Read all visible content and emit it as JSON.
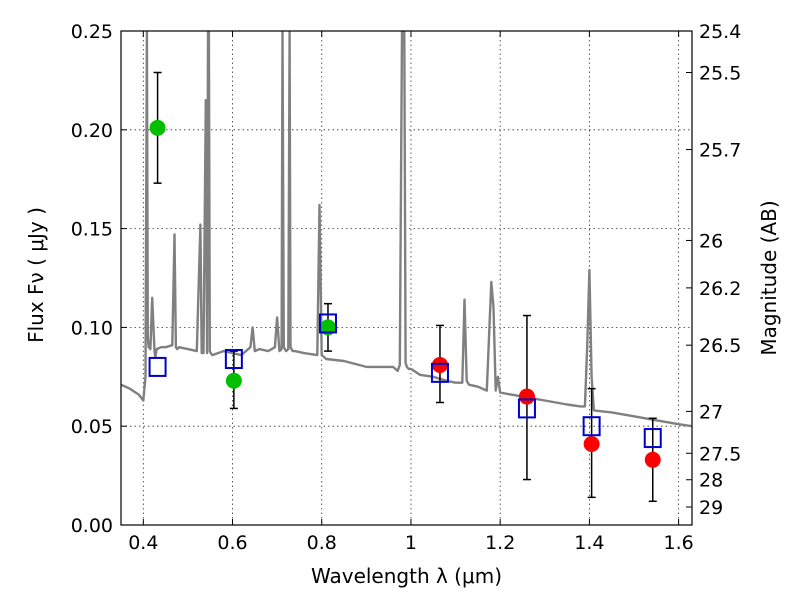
{
  "chart_data": {
    "type": "scatter",
    "title": "",
    "xlabel": "Wavelength  λ (μm)",
    "ylabel": "Flux  Fν  ( μJy )",
    "y2label": "Magnitude (AB)",
    "xlim": [
      0.35,
      1.63
    ],
    "ylim": [
      0,
      0.25
    ],
    "grid": true,
    "x_ticks": [
      0.4,
      0.6,
      0.8,
      1.0,
      1.2,
      1.4,
      1.6
    ],
    "x_tick_labels": [
      "0.4",
      "0.6",
      "0.8",
      "1",
      "1.2",
      "1.4",
      "1.6"
    ],
    "y_ticks": [
      0,
      0.05,
      0.1,
      0.15,
      0.2,
      0.25
    ],
    "y_tick_labels": [
      "0.00",
      "0.05",
      "0.10",
      "0.15",
      "0.20",
      "0.25"
    ],
    "y2_ticks": [
      {
        "label": "25.4",
        "flux": 0.25
      },
      {
        "label": "25.5",
        "flux": 0.229
      },
      {
        "label": "25.7",
        "flux": 0.19
      },
      {
        "label": "26",
        "flux": 0.144
      },
      {
        "label": "26.2",
        "flux": 0.12
      },
      {
        "label": "26.5",
        "flux": 0.091
      },
      {
        "label": "27",
        "flux": 0.0575
      },
      {
        "label": "27.5",
        "flux": 0.0363
      },
      {
        "label": "28",
        "flux": 0.0229
      },
      {
        "label": "29",
        "flux": 0.0091
      }
    ],
    "series": [
      {
        "kind": "line",
        "color": "#808080",
        "x": [
          0.35,
          0.37,
          0.39,
          0.4,
          0.405,
          0.408,
          0.41,
          0.412,
          0.416,
          0.42,
          0.425,
          0.427,
          0.43,
          0.44,
          0.45,
          0.465,
          0.47,
          0.473,
          0.476,
          0.48,
          0.5,
          0.52,
          0.528,
          0.531,
          0.535,
          0.54,
          0.543,
          0.545,
          0.547,
          0.549,
          0.551,
          0.555,
          0.58,
          0.6,
          0.62,
          0.64,
          0.645,
          0.65,
          0.66,
          0.68,
          0.695,
          0.7,
          0.705,
          0.71,
          0.712,
          0.715,
          0.72,
          0.725,
          0.728,
          0.73,
          0.735,
          0.74,
          0.76,
          0.79,
          0.795,
          0.8,
          0.805,
          0.81,
          0.85,
          0.9,
          0.93,
          0.96,
          0.97,
          0.975,
          0.98,
          0.985,
          0.988,
          0.991,
          0.995,
          1.0,
          1.02,
          1.05,
          1.08,
          1.1,
          1.115,
          1.12,
          1.125,
          1.13,
          1.15,
          1.17,
          1.18,
          1.185,
          1.19,
          1.195,
          1.2,
          1.25,
          1.3,
          1.35,
          1.38,
          1.39,
          1.395,
          1.4,
          1.405,
          1.41,
          1.45,
          1.5,
          1.55,
          1.6,
          1.63
        ],
        "y": [
          0.071,
          0.069,
          0.066,
          0.063,
          0.075,
          0.25,
          0.095,
          0.09,
          0.089,
          0.115,
          0.088,
          0.085,
          0.089,
          0.09,
          0.09,
          0.091,
          0.147,
          0.09,
          0.089,
          0.09,
          0.089,
          0.088,
          0.152,
          0.087,
          0.087,
          0.215,
          0.087,
          0.25,
          0.25,
          0.088,
          0.087,
          0.086,
          0.088,
          0.087,
          0.086,
          0.09,
          0.1,
          0.088,
          0.089,
          0.088,
          0.09,
          0.105,
          0.088,
          0.089,
          0.25,
          0.09,
          0.088,
          0.089,
          0.25,
          0.09,
          0.088,
          0.088,
          0.087,
          0.086,
          0.162,
          0.086,
          0.085,
          0.084,
          0.083,
          0.08,
          0.08,
          0.08,
          0.078,
          0.081,
          0.25,
          0.25,
          0.082,
          0.08,
          0.079,
          0.079,
          0.076,
          0.075,
          0.073,
          0.072,
          0.072,
          0.114,
          0.073,
          0.071,
          0.07,
          0.068,
          0.123,
          0.11,
          0.068,
          0.075,
          0.067,
          0.065,
          0.063,
          0.061,
          0.06,
          0.06,
          0.09,
          0.129,
          0.075,
          0.058,
          0.057,
          0.055,
          0.053,
          0.051,
          0.05
        ]
      },
      {
        "kind": "errorbar",
        "color": "#000000",
        "x": [
          0.432,
          0.603,
          0.814,
          1.065,
          1.26,
          1.405,
          1.542
        ],
        "low": [
          0.173,
          0.059,
          0.088,
          0.062,
          0.023,
          0.014,
          0.012
        ],
        "high": [
          0.229,
          0.088,
          0.112,
          0.101,
          0.106,
          0.069,
          0.054
        ]
      },
      {
        "kind": "points",
        "marker": "filled-circle",
        "color": "#00bf00",
        "x": [
          0.432,
          0.603,
          0.814
        ],
        "y": [
          0.201,
          0.073,
          0.1
        ]
      },
      {
        "kind": "points",
        "marker": "filled-circle",
        "color": "#ff0000",
        "x": [
          1.065,
          1.26,
          1.405,
          1.542
        ],
        "y": [
          0.081,
          0.065,
          0.041,
          0.033
        ]
      },
      {
        "kind": "points",
        "marker": "open-square",
        "color": "#0000cc",
        "x": [
          0.432,
          0.603,
          0.814,
          1.065,
          1.26,
          1.405,
          1.542
        ],
        "y": [
          0.08,
          0.084,
          0.102,
          0.077,
          0.059,
          0.05,
          0.044
        ]
      }
    ]
  }
}
